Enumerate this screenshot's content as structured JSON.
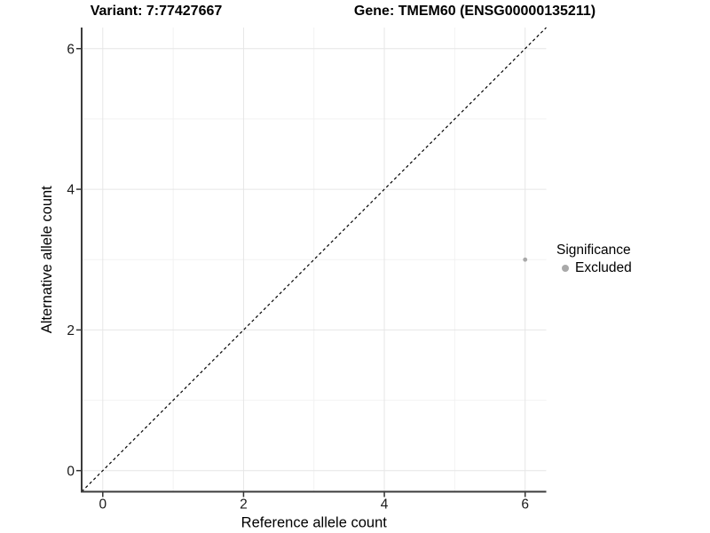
{
  "titles": {
    "left": "Variant: 7:77427667",
    "right": "Gene: TMEM60 (ENSG00000135211)"
  },
  "legend": {
    "title": "Significance",
    "items": [
      {
        "label": "Excluded",
        "color": "#a9a9a9"
      }
    ]
  },
  "chart_data": {
    "type": "scatter",
    "title_left": "Variant: 7:77427667",
    "title_right": "Gene: TMEM60 (ENSG00000135211)",
    "xlabel": "Reference allele count",
    "ylabel": "Alternative allele count",
    "xlim": [
      -0.3,
      6.3
    ],
    "ylim": [
      -0.3,
      6.3
    ],
    "xticks": [
      0,
      2,
      4,
      6
    ],
    "yticks": [
      0,
      2,
      4,
      6
    ],
    "minor_gridlines": [
      1,
      3,
      5
    ],
    "grid": true,
    "legend_position": "right",
    "legend_title": "Significance",
    "series": [
      {
        "name": "Excluded",
        "color": "#a9a9a9",
        "points": [
          {
            "x": 6,
            "y": 3
          }
        ]
      }
    ],
    "reference_line": {
      "slope": 1,
      "intercept": 0,
      "style": "dashed",
      "color": "#000000"
    }
  },
  "colors": {
    "background": "#ffffff",
    "grid_major": "#e6e6e6",
    "grid_minor": "#f2f2f2",
    "axis_line": "#3c3c3c",
    "tick_mark": "#333333",
    "tick_label": "#1a1a1a",
    "axis_title": "#000000"
  }
}
